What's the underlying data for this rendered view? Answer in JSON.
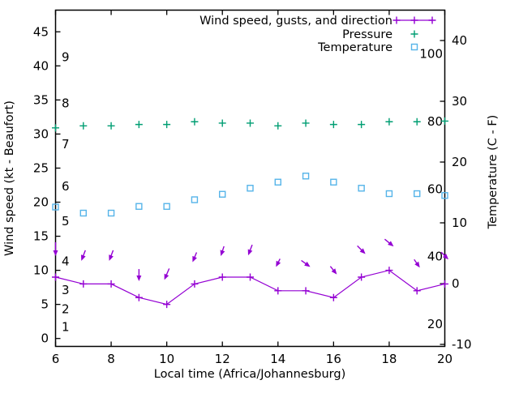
{
  "chart_data": {
    "type": "line",
    "title": "",
    "xlabel": "Local time (Africa/Johannesburg)",
    "ylabel_left": "Wind speed (kt - Beaufort)",
    "ylabel_right": "Temperature (C - F)",
    "grid": false,
    "x_hours": [
      6,
      7,
      8,
      9,
      10,
      11,
      12,
      13,
      14,
      15,
      16,
      17,
      18,
      19,
      20
    ],
    "x_ticks": [
      6,
      8,
      10,
      12,
      14,
      16,
      18,
      20
    ],
    "y_left_ticks": [
      0,
      5,
      10,
      15,
      20,
      25,
      30,
      35,
      40,
      45
    ],
    "y_left_range": [
      -1.2,
      48.2
    ],
    "y_right_ticks_celsius": [
      -10,
      0,
      10,
      20,
      30,
      40
    ],
    "y_right_range_celsius": [
      -10.4,
      45.0
    ],
    "beaufort_scale_labels": [
      {
        "text": "1",
        "kt": 1.7
      },
      {
        "text": "2",
        "kt": 4.3
      },
      {
        "text": "3",
        "kt": 7.1
      },
      {
        "text": "4",
        "kt": 11.3
      },
      {
        "text": "5",
        "kt": 17.2
      },
      {
        "text": "6",
        "kt": 22.3
      },
      {
        "text": "7",
        "kt": 28.5
      },
      {
        "text": "8",
        "kt": 34.5
      },
      {
        "text": "9",
        "kt": 41.3
      }
    ],
    "fahrenheit_scale_labels": [
      {
        "text": "20",
        "f": 20
      },
      {
        "text": "40",
        "f": 40
      },
      {
        "text": "60",
        "f": 60
      },
      {
        "text": "80",
        "f": 80
      },
      {
        "text": "100",
        "f": 100
      }
    ],
    "series": [
      {
        "name": "Wind speed, gusts, and direction",
        "color": "#9400d3",
        "marker": "plus",
        "style": "linespoints",
        "axis": "kt",
        "values": [
          9,
          8,
          8,
          6,
          5,
          8,
          9,
          9,
          7,
          7,
          6,
          9,
          10,
          7,
          8
        ]
      },
      {
        "name": "Pressure",
        "color": "#009e73",
        "marker": "plus",
        "style": "points",
        "axis": "kt",
        "values": [
          30.9,
          31.2,
          31.2,
          31.4,
          31.4,
          31.8,
          31.6,
          31.6,
          31.2,
          31.6,
          31.4,
          31.4,
          31.8,
          31.8,
          31.9
        ]
      },
      {
        "name": "Temperature",
        "color": "#56b4e9",
        "marker": "open-square",
        "style": "points",
        "axis": "celsius",
        "values": [
          12.6,
          11.6,
          11.6,
          12.7,
          12.7,
          13.8,
          14.7,
          15.7,
          16.7,
          17.7,
          16.7,
          15.7,
          14.8,
          14.8,
          14.5
        ]
      }
    ],
    "gust_arrows": {
      "color": "#9400d3",
      "tip_kt": [
        12.1,
        11.4,
        11.4,
        8.4,
        8.6,
        11.2,
        12.1,
        12.2,
        10.5,
        10.5,
        9.4,
        12.4,
        13.5,
        10.4,
        11.6
      ],
      "dir_dx": [
        0,
        -5,
        -5,
        0,
        -6,
        -5,
        -4,
        -5,
        -5,
        11,
        8,
        10,
        11,
        7,
        9
      ],
      "dir_dy": [
        17,
        13,
        13,
        15,
        14,
        12,
        12,
        13,
        10,
        8,
        10,
        10,
        9,
        10,
        9
      ]
    },
    "legend": {
      "position": "top-right-inside",
      "entries": [
        "Wind speed, gusts, and direction",
        "Pressure",
        "Temperature"
      ]
    },
    "colors": {
      "wind": "#9400d3",
      "pressure": "#009e73",
      "temperature": "#56b4e9",
      "axis": "#000000",
      "background": "#ffffff"
    }
  }
}
